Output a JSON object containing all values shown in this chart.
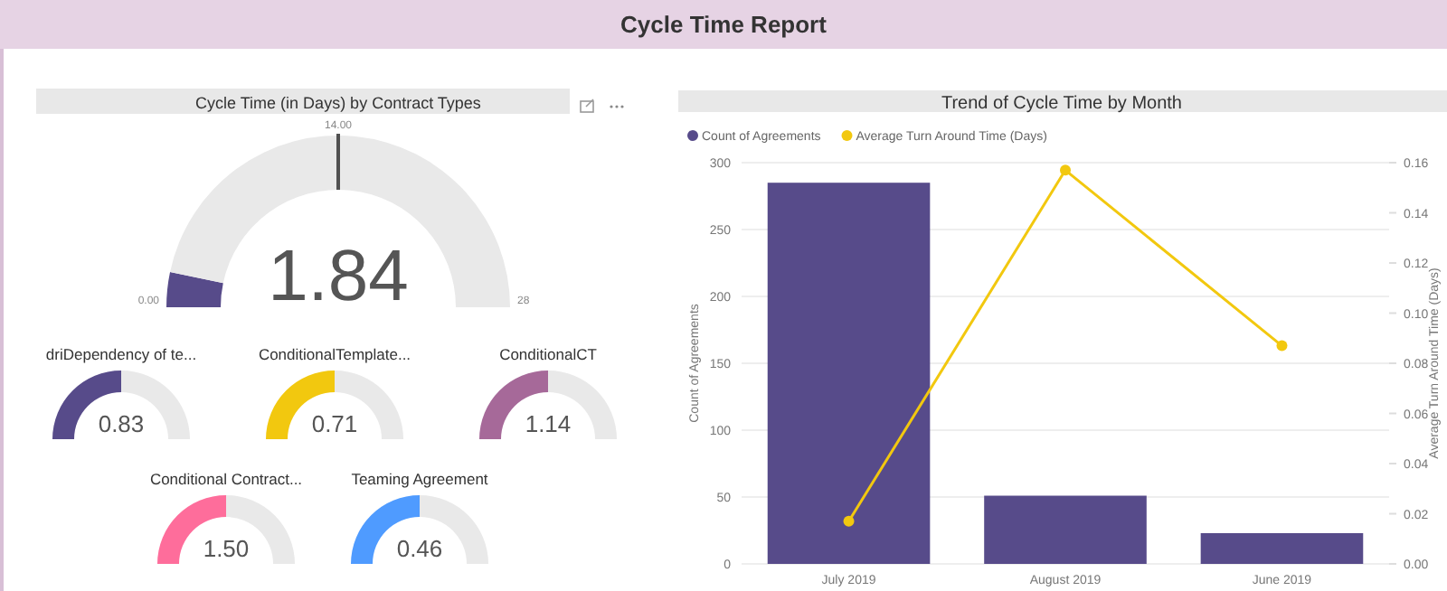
{
  "chart_data": [
    {
      "type": "other",
      "title": "Cycle Time Report"
    },
    {
      "type": "donut",
      "title": "Cycle Time (in Days) by Contract Types",
      "categories": [
        null,
        null
      ],
      "values": [
        6.57,
        93.43
      ],
      "colors": [
        "#574b8a",
        "#e9e9e9"
      ],
      "annotations": [
        "0.00",
        "14.00",
        "28",
        "1.84"
      ]
    },
    {
      "type": "donut",
      "title": "driDependency of te...",
      "categories": [
        null,
        null
      ],
      "values": [
        50,
        50
      ],
      "annotations": [
        "0.83"
      ],
      "colors": [
        "#574b8a",
        "#e9e9e9"
      ]
    },
    {
      "type": "donut",
      "title": "ConditionalTemplate...",
      "categories": [
        null,
        null
      ],
      "values": [
        50,
        50
      ],
      "annotations": [
        "0.71"
      ],
      "colors": [
        "#f2c80f",
        "#e9e9e9"
      ]
    },
    {
      "type": "donut",
      "title": "ConditionalCT",
      "categories": [
        null,
        null
      ],
      "values": [
        50,
        50
      ],
      "annotations": [
        "1.14"
      ],
      "colors": [
        "#a66999",
        "#e9e9e9"
      ]
    },
    {
      "type": "donut",
      "title": "Conditional Contract...",
      "categories": [
        null,
        null
      ],
      "values": [
        50,
        50
      ],
      "annotations": [
        "1.50"
      ],
      "colors": [
        "#fe6d9b",
        "#e9e9e9"
      ]
    },
    {
      "type": "donut",
      "title": "Teaming Agreement",
      "categories": [
        null,
        null
      ],
      "values": [
        50,
        50
      ],
      "annotations": [
        "0.46"
      ],
      "colors": [
        "#4f9bff",
        "#e9e9e9"
      ]
    },
    {
      "type": "bar",
      "title": "Trend of Cycle Time by Month",
      "categories": [
        "July 2019",
        "August 2019",
        "June 2019"
      ],
      "series": [
        {
          "name": "Count of Agreements",
          "color": "#574b8a",
          "values": [
            285,
            51,
            23
          ]
        },
        {
          "name": "Average Turn Around Time (Days)",
          "type": "line",
          "axis": "y2",
          "color": "#f2c80f",
          "values": [
            0.017,
            0.157,
            0.087
          ]
        }
      ],
      "ylabel": "Count of Agreements",
      "y2label": "Average Turn Around Time (Days)",
      "ylim": [
        0,
        300
      ],
      "yticks": [
        0,
        50,
        100,
        150,
        200,
        250,
        300
      ],
      "y2lim": [
        0,
        0.16
      ],
      "y2ticks": [
        {
          "value": 0,
          "label": "0.00"
        },
        0.02,
        0.04,
        0.06,
        0.08,
        {
          "value": 0.1,
          "label": "0.10"
        },
        0.12,
        0.14,
        0.16
      ],
      "grid": "y",
      "legend": "top left",
      "marker": "circle"
    }
  ]
}
